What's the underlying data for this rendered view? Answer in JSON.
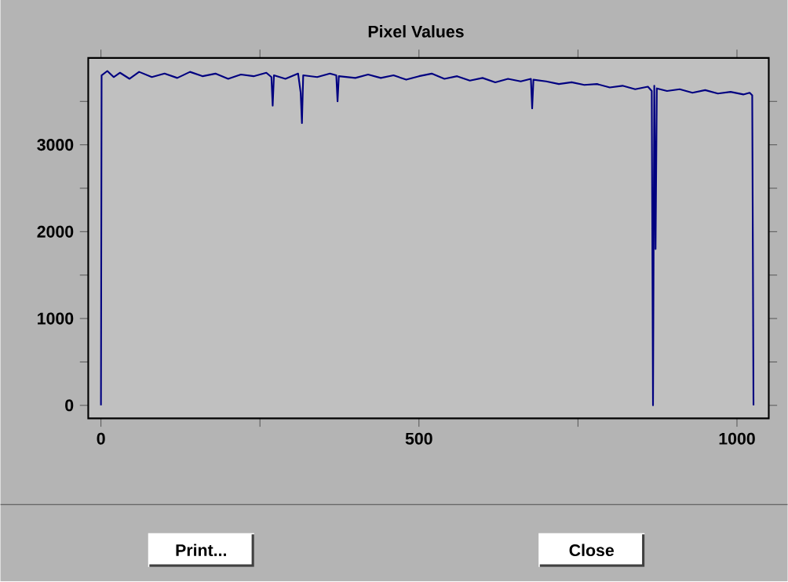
{
  "chart_data": {
    "type": "line",
    "title": "Pixel Values",
    "x": [
      0,
      1,
      10,
      20,
      30,
      45,
      60,
      80,
      100,
      120,
      140,
      160,
      180,
      200,
      220,
      240,
      260,
      268,
      270,
      272,
      290,
      310,
      314,
      316,
      318,
      340,
      360,
      370,
      372,
      374,
      400,
      420,
      440,
      460,
      480,
      500,
      520,
      540,
      560,
      580,
      600,
      620,
      640,
      660,
      676,
      678,
      680,
      700,
      720,
      740,
      760,
      780,
      800,
      820,
      840,
      860,
      866,
      868,
      870,
      872,
      874,
      890,
      910,
      930,
      950,
      970,
      990,
      1010,
      1020,
      1024,
      1025,
      1026
    ],
    "series": [
      {
        "color": "#000080",
        "values": [
          0,
          3800,
          3850,
          3780,
          3830,
          3760,
          3840,
          3780,
          3820,
          3770,
          3840,
          3790,
          3820,
          3760,
          3810,
          3790,
          3830,
          3780,
          3450,
          3800,
          3760,
          3820,
          3600,
          3250,
          3800,
          3780,
          3820,
          3800,
          3500,
          3790,
          3770,
          3810,
          3770,
          3800,
          3750,
          3790,
          3820,
          3760,
          3790,
          3740,
          3770,
          3720,
          3760,
          3730,
          3760,
          3420,
          3750,
          3730,
          3700,
          3720,
          3690,
          3700,
          3660,
          3680,
          3640,
          3670,
          3620,
          0,
          3680,
          1800,
          3650,
          3620,
          3640,
          3600,
          3630,
          3590,
          3610,
          3580,
          3600,
          3570,
          1800,
          0
        ]
      }
    ],
    "xlim": [
      -20,
      1050
    ],
    "ylim": [
      -150,
      4000
    ],
    "xticks": [
      0,
      {
        "value": 250,
        "label": null
      },
      500,
      {
        "value": 750,
        "label": null
      },
      1000
    ],
    "yticks": [
      0,
      {
        "value": 500,
        "label": null
      },
      1000,
      {
        "value": 1500,
        "label": null
      },
      2000,
      {
        "value": 2500,
        "label": null
      },
      3000,
      {
        "value": 3500,
        "label": null
      }
    ],
    "marker": "none",
    "line_style": "solid",
    "annotations": [
      "Print...",
      "Close"
    ]
  }
}
